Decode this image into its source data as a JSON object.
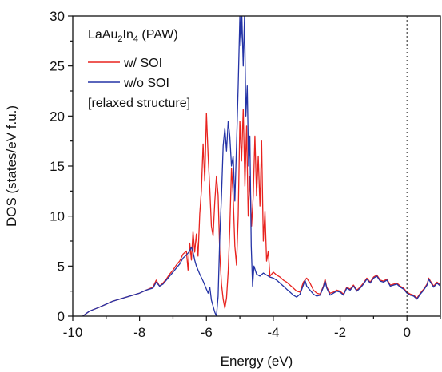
{
  "chart_data": {
    "type": "line",
    "title": "",
    "xlabel": "Energy (eV)",
    "ylabel": "DOS (states/eV f.u.)",
    "xlim": [
      -10,
      1
    ],
    "ylim": [
      0,
      30
    ],
    "x_ticks": [
      -10,
      -8,
      -6,
      -4,
      -2,
      0
    ],
    "y_ticks": [
      0,
      5,
      10,
      15,
      20,
      25,
      30
    ],
    "x_tick_labels": [
      "-10",
      "-8",
      "-6",
      "-4",
      "-2",
      "0"
    ],
    "y_tick_labels": [
      "0",
      "5",
      "10",
      "15",
      "20",
      "25",
      "30"
    ],
    "fermi_level": 0,
    "legend": {
      "title_main": "LaAu",
      "title_sub1": "2",
      "title_mid": "In",
      "title_sub2": "4",
      "title_end": " (PAW)",
      "note": "[relaxed structure]",
      "placement": "top-left"
    },
    "series": [
      {
        "name": "w/ SOI",
        "color": "#e8231f",
        "points": [
          [
            -9.7,
            0
          ],
          [
            -9.5,
            0.5
          ],
          [
            -9.2,
            0.9
          ],
          [
            -9.0,
            1.2
          ],
          [
            -8.8,
            1.5
          ],
          [
            -8.6,
            1.7
          ],
          [
            -8.4,
            1.9
          ],
          [
            -8.2,
            2.1
          ],
          [
            -8.0,
            2.3
          ],
          [
            -7.8,
            2.6
          ],
          [
            -7.6,
            2.9
          ],
          [
            -7.5,
            3.6
          ],
          [
            -7.4,
            3.0
          ],
          [
            -7.3,
            3.3
          ],
          [
            -7.2,
            3.7
          ],
          [
            -7.1,
            4.2
          ],
          [
            -7.0,
            4.6
          ],
          [
            -6.9,
            5.1
          ],
          [
            -6.8,
            5.5
          ],
          [
            -6.7,
            6.2
          ],
          [
            -6.6,
            6.5
          ],
          [
            -6.55,
            4.6
          ],
          [
            -6.5,
            7.3
          ],
          [
            -6.45,
            5.6
          ],
          [
            -6.4,
            8.5
          ],
          [
            -6.35,
            6.4
          ],
          [
            -6.3,
            8.2
          ],
          [
            -6.25,
            6.0
          ],
          [
            -6.2,
            10.2
          ],
          [
            -6.15,
            12.6
          ],
          [
            -6.1,
            17.2
          ],
          [
            -6.05,
            13.5
          ],
          [
            -6.0,
            20.3
          ],
          [
            -5.95,
            16.0
          ],
          [
            -5.9,
            12.7
          ],
          [
            -5.85,
            9.0
          ],
          [
            -5.8,
            8.0
          ],
          [
            -5.75,
            11.4
          ],
          [
            -5.7,
            14.0
          ],
          [
            -5.65,
            12.1
          ],
          [
            -5.6,
            6.2
          ],
          [
            -5.55,
            3.2
          ],
          [
            -5.5,
            1.7
          ],
          [
            -5.45,
            0.8
          ],
          [
            -5.4,
            1.8
          ],
          [
            -5.35,
            4.5
          ],
          [
            -5.3,
            8.8
          ],
          [
            -5.25,
            14.8
          ],
          [
            -5.2,
            12.0
          ],
          [
            -5.15,
            7.0
          ],
          [
            -5.1,
            5.1
          ],
          [
            -5.05,
            10.0
          ],
          [
            -5.0,
            19.5
          ],
          [
            -4.95,
            15.5
          ],
          [
            -4.9,
            20.7
          ],
          [
            -4.85,
            13.0
          ],
          [
            -4.8,
            19.0
          ],
          [
            -4.75,
            10.0
          ],
          [
            -4.7,
            14.0
          ],
          [
            -4.65,
            9.0
          ],
          [
            -4.6,
            12.0
          ],
          [
            -4.55,
            18.0
          ],
          [
            -4.5,
            12.0
          ],
          [
            -4.45,
            16.0
          ],
          [
            -4.4,
            11.0
          ],
          [
            -4.35,
            17.5
          ],
          [
            -4.3,
            7.5
          ],
          [
            -4.25,
            10.5
          ],
          [
            -4.2,
            5.5
          ],
          [
            -4.15,
            6.5
          ],
          [
            -4.1,
            4.0
          ],
          [
            -4.0,
            4.4
          ],
          [
            -3.9,
            4.1
          ],
          [
            -3.8,
            3.9
          ],
          [
            -3.7,
            3.6
          ],
          [
            -3.6,
            3.4
          ],
          [
            -3.5,
            3.1
          ],
          [
            -3.4,
            2.8
          ],
          [
            -3.3,
            2.5
          ],
          [
            -3.2,
            2.4
          ],
          [
            -3.1,
            3.4
          ],
          [
            -3.0,
            3.8
          ],
          [
            -2.9,
            3.3
          ],
          [
            -2.8,
            2.6
          ],
          [
            -2.7,
            2.3
          ],
          [
            -2.6,
            2.2
          ],
          [
            -2.5,
            3.0
          ],
          [
            -2.45,
            3.7
          ],
          [
            -2.4,
            2.9
          ],
          [
            -2.3,
            2.3
          ],
          [
            -2.2,
            2.4
          ],
          [
            -2.1,
            2.6
          ],
          [
            -2.0,
            2.5
          ],
          [
            -1.9,
            2.2
          ],
          [
            -1.8,
            2.9
          ],
          [
            -1.7,
            2.7
          ],
          [
            -1.6,
            3.1
          ],
          [
            -1.5,
            2.6
          ],
          [
            -1.4,
            2.9
          ],
          [
            -1.3,
            3.3
          ],
          [
            -1.2,
            3.8
          ],
          [
            -1.1,
            3.4
          ],
          [
            -1.0,
            3.9
          ],
          [
            -0.9,
            4.1
          ],
          [
            -0.8,
            3.6
          ],
          [
            -0.7,
            3.5
          ],
          [
            -0.6,
            3.7
          ],
          [
            -0.5,
            3.1
          ],
          [
            -0.4,
            3.2
          ],
          [
            -0.3,
            3.3
          ],
          [
            -0.2,
            3.0
          ],
          [
            -0.1,
            2.8
          ],
          [
            0.0,
            2.4
          ],
          [
            0.1,
            2.2
          ],
          [
            0.2,
            2.1
          ],
          [
            0.3,
            1.8
          ],
          [
            0.4,
            2.3
          ],
          [
            0.5,
            2.7
          ],
          [
            0.6,
            3.2
          ],
          [
            0.65,
            3.8
          ],
          [
            0.7,
            3.5
          ],
          [
            0.8,
            3.0
          ],
          [
            0.9,
            3.4
          ],
          [
            1.0,
            3.1
          ]
        ]
      },
      {
        "name": "w/o SOI",
        "color": "#2433a6",
        "points": [
          [
            -9.7,
            0
          ],
          [
            -9.5,
            0.5
          ],
          [
            -9.2,
            0.9
          ],
          [
            -9.0,
            1.2
          ],
          [
            -8.8,
            1.5
          ],
          [
            -8.6,
            1.7
          ],
          [
            -8.4,
            1.9
          ],
          [
            -8.2,
            2.1
          ],
          [
            -8.0,
            2.3
          ],
          [
            -7.8,
            2.6
          ],
          [
            -7.6,
            2.8
          ],
          [
            -7.5,
            3.4
          ],
          [
            -7.4,
            3.0
          ],
          [
            -7.3,
            3.2
          ],
          [
            -7.2,
            3.6
          ],
          [
            -7.1,
            4.0
          ],
          [
            -7.0,
            4.4
          ],
          [
            -6.9,
            4.8
          ],
          [
            -6.8,
            5.2
          ],
          [
            -6.7,
            5.8
          ],
          [
            -6.6,
            6.1
          ],
          [
            -6.5,
            6.5
          ],
          [
            -6.45,
            6.9
          ],
          [
            -6.4,
            6.4
          ],
          [
            -6.35,
            5.6
          ],
          [
            -6.3,
            5.0
          ],
          [
            -6.2,
            4.2
          ],
          [
            -6.1,
            3.5
          ],
          [
            -6.0,
            2.7
          ],
          [
            -5.95,
            2.3
          ],
          [
            -5.9,
            2.9
          ],
          [
            -5.85,
            1.6
          ],
          [
            -5.8,
            1.0
          ],
          [
            -5.75,
            0.4
          ],
          [
            -5.7,
            0.0
          ],
          [
            -5.65,
            2.0
          ],
          [
            -5.6,
            8.0
          ],
          [
            -5.55,
            12.0
          ],
          [
            -5.5,
            17.0
          ],
          [
            -5.45,
            18.8
          ],
          [
            -5.4,
            16.5
          ],
          [
            -5.35,
            19.5
          ],
          [
            -5.3,
            18.0
          ],
          [
            -5.25,
            15.0
          ],
          [
            -5.2,
            16.0
          ],
          [
            -5.15,
            11.5
          ],
          [
            -5.1,
            17.0
          ],
          [
            -5.05,
            23.0
          ],
          [
            -5.0,
            30.0
          ],
          [
            -4.97,
            27.0
          ],
          [
            -4.94,
            30.0
          ],
          [
            -4.9,
            25.0
          ],
          [
            -4.86,
            30.0
          ],
          [
            -4.82,
            20.0
          ],
          [
            -4.78,
            23.0
          ],
          [
            -4.74,
            15.0
          ],
          [
            -4.7,
            18.0
          ],
          [
            -4.66,
            7.0
          ],
          [
            -4.62,
            3.0
          ],
          [
            -4.58,
            5.0
          ],
          [
            -4.5,
            4.2
          ],
          [
            -4.4,
            4.0
          ],
          [
            -4.3,
            4.3
          ],
          [
            -4.2,
            4.1
          ],
          [
            -4.1,
            3.9
          ],
          [
            -4.0,
            3.8
          ],
          [
            -3.9,
            3.6
          ],
          [
            -3.8,
            3.3
          ],
          [
            -3.7,
            3.0
          ],
          [
            -3.6,
            2.7
          ],
          [
            -3.5,
            2.4
          ],
          [
            -3.4,
            2.1
          ],
          [
            -3.3,
            1.9
          ],
          [
            -3.2,
            2.2
          ],
          [
            -3.1,
            3.1
          ],
          [
            -3.05,
            3.6
          ],
          [
            -3.0,
            3.0
          ],
          [
            -2.9,
            2.6
          ],
          [
            -2.8,
            2.2
          ],
          [
            -2.7,
            2.0
          ],
          [
            -2.6,
            2.1
          ],
          [
            -2.5,
            2.9
          ],
          [
            -2.45,
            3.5
          ],
          [
            -2.4,
            2.8
          ],
          [
            -2.3,
            2.1
          ],
          [
            -2.2,
            2.3
          ],
          [
            -2.1,
            2.5
          ],
          [
            -2.0,
            2.4
          ],
          [
            -1.9,
            2.1
          ],
          [
            -1.8,
            2.8
          ],
          [
            -1.7,
            2.6
          ],
          [
            -1.6,
            3.0
          ],
          [
            -1.5,
            2.5
          ],
          [
            -1.4,
            2.8
          ],
          [
            -1.3,
            3.2
          ],
          [
            -1.2,
            3.7
          ],
          [
            -1.1,
            3.3
          ],
          [
            -1.0,
            3.8
          ],
          [
            -0.9,
            4.0
          ],
          [
            -0.8,
            3.5
          ],
          [
            -0.7,
            3.4
          ],
          [
            -0.6,
            3.6
          ],
          [
            -0.5,
            3.0
          ],
          [
            -0.4,
            3.1
          ],
          [
            -0.3,
            3.2
          ],
          [
            -0.2,
            2.9
          ],
          [
            -0.1,
            2.7
          ],
          [
            0.0,
            2.3
          ],
          [
            0.1,
            2.1
          ],
          [
            0.2,
            2.0
          ],
          [
            0.3,
            1.7
          ],
          [
            0.4,
            2.2
          ],
          [
            0.5,
            2.6
          ],
          [
            0.6,
            3.1
          ],
          [
            0.65,
            3.7
          ],
          [
            0.7,
            3.4
          ],
          [
            0.8,
            2.9
          ],
          [
            0.9,
            3.3
          ],
          [
            1.0,
            3.0
          ]
        ]
      }
    ]
  }
}
